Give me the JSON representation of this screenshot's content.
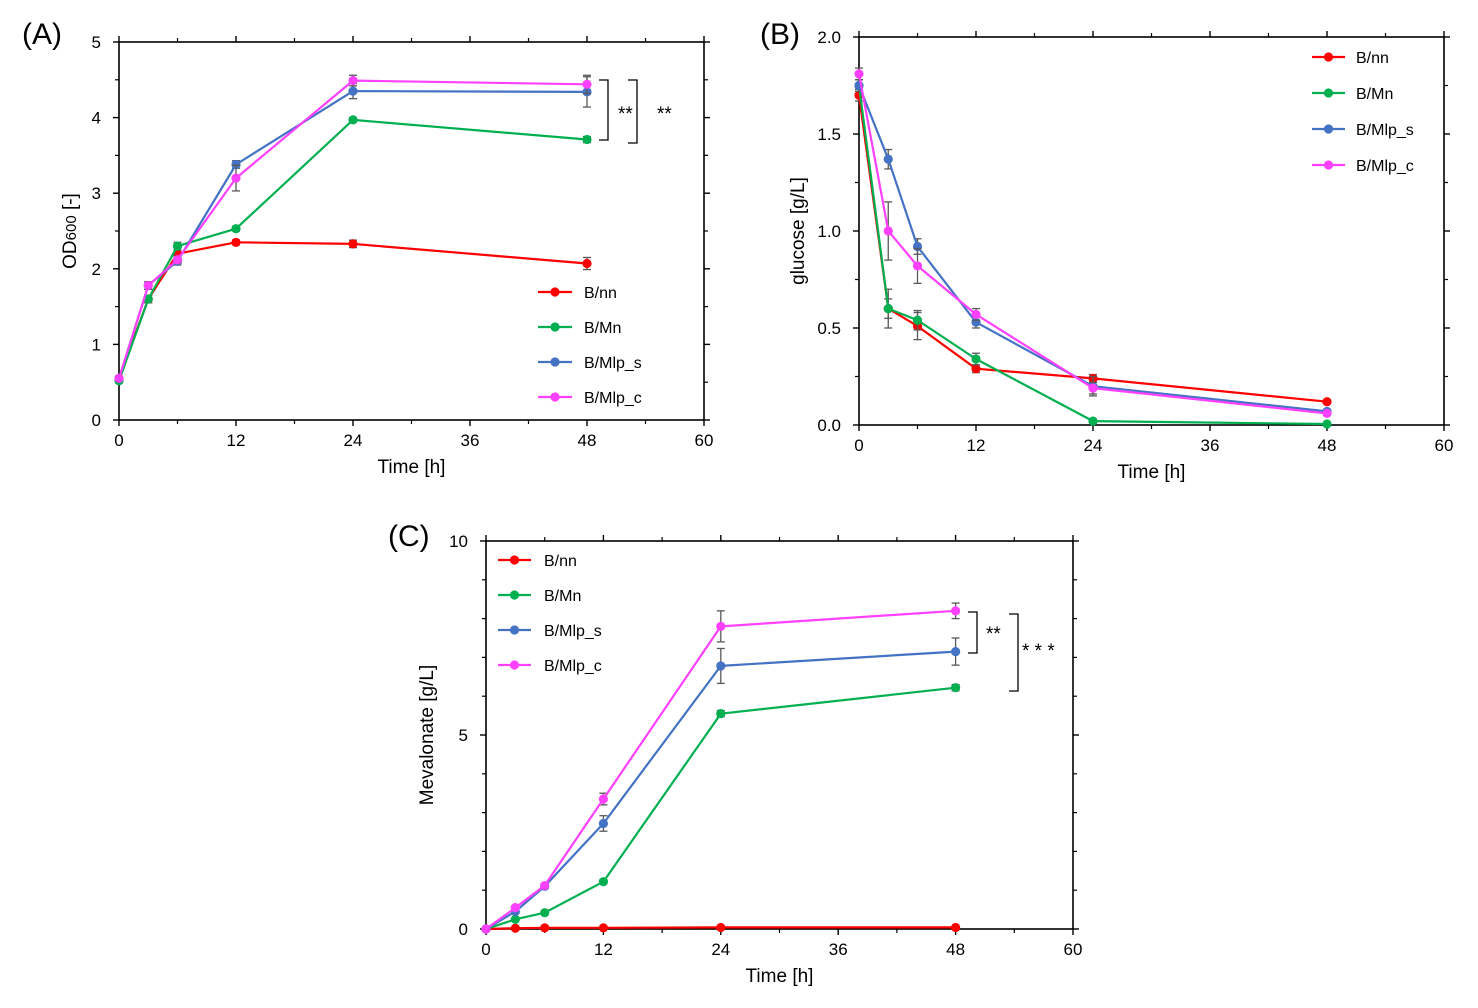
{
  "colors": {
    "B/nn": "#ff0000",
    "B/Mn": "#00b050",
    "B/Mlp_s": "#4472c4",
    "B/Mlp_c": "#ff40ff",
    "error_bar": "#595959",
    "axis": "#000000"
  },
  "chart_data": [
    {
      "type": "line",
      "panel_label": "(A)",
      "xlabel": "Time [h]",
      "ylabel": "OD",
      "ylabel_sub": "600",
      "ylabel_suffix": " [-]",
      "xlim": [
        0,
        60
      ],
      "ylim": [
        0,
        5
      ],
      "x_ticks": [
        "0",
        "12",
        "24",
        "36",
        "48",
        "60"
      ],
      "y_ticks": [
        "0",
        "1",
        "2",
        "3",
        "4",
        "5"
      ],
      "grid": false,
      "legend_position": "bottom-right",
      "significance": [
        "**",
        "**"
      ],
      "x": [
        0,
        3,
        6,
        12,
        24,
        48
      ],
      "series": [
        {
          "name": "B/nn",
          "values": [
            0.55,
            1.6,
            2.2,
            2.35,
            2.33,
            2.07
          ],
          "errors": [
            0.03,
            0.05,
            0.05,
            0.03,
            0.05,
            0.08
          ]
        },
        {
          "name": "B/Mn",
          "values": [
            0.52,
            1.6,
            2.3,
            2.53,
            3.97,
            3.71
          ],
          "errors": [
            0.03,
            0.05,
            0.05,
            0.03,
            0.03,
            0.04
          ]
        },
        {
          "name": "B/Mlp_s",
          "values": [
            0.55,
            1.78,
            2.1,
            3.38,
            4.35,
            4.34
          ],
          "errors": [
            0.03,
            0.05,
            0.05,
            0.05,
            0.1,
            0.2
          ]
        },
        {
          "name": "B/Mlp_c",
          "values": [
            0.55,
            1.78,
            2.12,
            3.2,
            4.49,
            4.44
          ],
          "errors": [
            0.03,
            0.05,
            0.05,
            0.17,
            0.07,
            0.12
          ]
        }
      ]
    },
    {
      "type": "line",
      "panel_label": "(B)",
      "xlabel": "Time [h]",
      "ylabel": "glucose [g/L]",
      "xlim": [
        0,
        60
      ],
      "ylim": [
        0,
        2.0
      ],
      "x_ticks": [
        "0",
        "12",
        "24",
        "36",
        "48",
        "60"
      ],
      "y_ticks": [
        "0.0",
        "0.5",
        "1.0",
        "1.5",
        "2.0"
      ],
      "grid": false,
      "legend_position": "top-right",
      "x": [
        0,
        3,
        6,
        12,
        24,
        48
      ],
      "series": [
        {
          "name": "B/nn",
          "values": [
            1.7,
            0.6,
            0.51,
            0.29,
            0.24,
            0.12
          ],
          "errors": [
            0.03,
            0.1,
            0.07,
            0.02,
            0.02,
            0.01
          ]
        },
        {
          "name": "B/Mn",
          "values": [
            1.75,
            0.6,
            0.54,
            0.34,
            0.02,
            0.005
          ],
          "errors": [
            0.03,
            0.05,
            0.05,
            0.03,
            0.01,
            0.005
          ]
        },
        {
          "name": "B/Mlp_s",
          "values": [
            1.75,
            1.37,
            0.92,
            0.53,
            0.2,
            0.07
          ],
          "errors": [
            0.03,
            0.05,
            0.04,
            0.03,
            0.05,
            0.01
          ]
        },
        {
          "name": "B/Mlp_c",
          "values": [
            1.81,
            1.0,
            0.82,
            0.57,
            0.19,
            0.06
          ],
          "errors": [
            0.03,
            0.15,
            0.09,
            0.03,
            0.03,
            0.01
          ]
        }
      ]
    },
    {
      "type": "line",
      "panel_label": "(C)",
      "xlabel": "Time [h]",
      "ylabel": "Mevalonate [g/L]",
      "xlim": [
        0,
        60
      ],
      "ylim": [
        0,
        10
      ],
      "x_ticks": [
        "0",
        "12",
        "24",
        "36",
        "48",
        "60"
      ],
      "y_ticks": [
        "0",
        "5",
        "10"
      ],
      "grid": false,
      "legend_position": "top-left",
      "significance": [
        "**",
        "* * *"
      ],
      "x": [
        0,
        3,
        6,
        12,
        24,
        48
      ],
      "series": [
        {
          "name": "B/nn",
          "values": [
            0,
            0.02,
            0.03,
            0.03,
            0.04,
            0.04
          ],
          "errors": [
            0,
            0,
            0,
            0,
            0,
            0
          ]
        },
        {
          "name": "B/Mn",
          "values": [
            0,
            0.25,
            0.42,
            1.22,
            5.55,
            6.22
          ],
          "errors": [
            0,
            0.03,
            0.03,
            0.05,
            0.08,
            0.08
          ]
        },
        {
          "name": "B/Mlp_s",
          "values": [
            0,
            0.45,
            1.1,
            2.72,
            6.78,
            7.15
          ],
          "errors": [
            0,
            0.05,
            0.05,
            0.2,
            0.45,
            0.35
          ]
        },
        {
          "name": "B/Mlp_c",
          "values": [
            0,
            0.55,
            1.12,
            3.35,
            7.8,
            8.2
          ],
          "errors": [
            0,
            0.05,
            0.05,
            0.15,
            0.4,
            0.2
          ]
        }
      ]
    }
  ]
}
